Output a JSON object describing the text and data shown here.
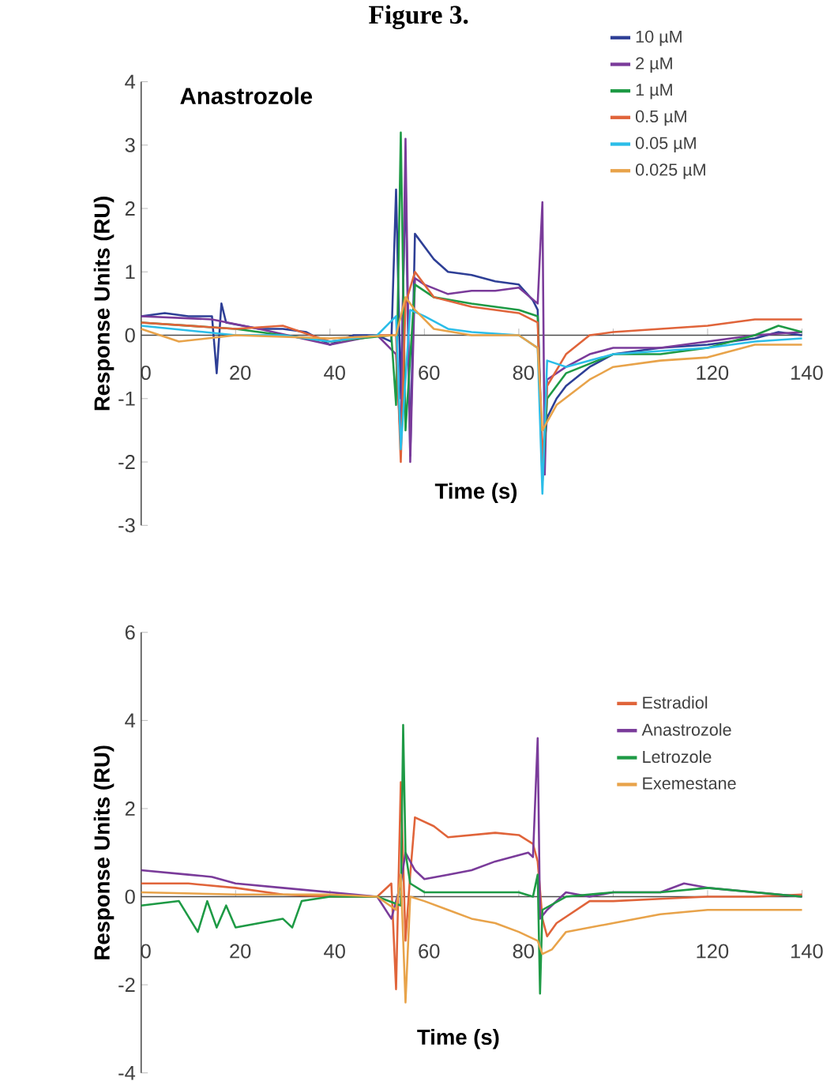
{
  "chart_data": [
    {
      "type": "line",
      "title": "Figure 3.",
      "xlabel": "Time (s)",
      "ylabel": "Response Units (RU)",
      "annotations": [
        "Anastrozole"
      ],
      "xlim": [
        0,
        140
      ],
      "ylim": [
        -3,
        4
      ],
      "xticks": [
        0,
        20,
        40,
        60,
        80,
        {
          "value": 100,
          "label": null
        },
        120,
        140
      ],
      "yticks": [
        -3,
        -2,
        -1,
        0,
        1,
        2,
        3,
        4
      ],
      "legend": "top right",
      "series": [
        {
          "name": "10 µM",
          "color": "#2e3f96",
          "x": [
            0,
            5,
            10,
            15,
            16,
            17,
            18,
            25,
            30,
            35,
            40,
            45,
            50,
            53,
            54,
            55,
            56,
            57,
            58,
            60,
            62,
            65,
            70,
            75,
            80,
            83,
            84,
            85,
            86,
            88,
            90,
            95,
            100,
            110,
            120,
            130,
            135,
            140
          ],
          "values": [
            0.3,
            0.35,
            0.3,
            0.3,
            -0.6,
            0.5,
            0.2,
            0.1,
            0.1,
            0.05,
            -0.15,
            0,
            0,
            -0.1,
            2.3,
            -1.0,
            2.5,
            -1.9,
            1.6,
            1.4,
            1.2,
            1.0,
            0.95,
            0.85,
            0.8,
            0.55,
            0.4,
            -2.0,
            -1.3,
            -1.0,
            -0.8,
            -0.5,
            -0.3,
            -0.2,
            -0.15,
            -0.05,
            0.05,
            0
          ]
        },
        {
          "name": "2 µM",
          "color": "#7a3b9a",
          "x": [
            0,
            15,
            25,
            40,
            50,
            54,
            55,
            56,
            57,
            58,
            60,
            65,
            70,
            75,
            80,
            84,
            85,
            85.5,
            86,
            90,
            95,
            100,
            110,
            120,
            130,
            140
          ],
          "values": [
            0.3,
            0.25,
            0.1,
            -0.15,
            0,
            -0.3,
            -1.7,
            3.1,
            -2.0,
            0.9,
            0.8,
            0.65,
            0.7,
            0.7,
            0.75,
            0.5,
            2.1,
            -2.2,
            -0.7,
            -0.5,
            -0.3,
            -0.2,
            -0.2,
            -0.1,
            0,
            0.05
          ]
        },
        {
          "name": "1 µM",
          "color": "#1e9a45",
          "x": [
            0,
            20,
            40,
            53,
            54,
            55,
            56,
            58,
            62,
            70,
            80,
            84,
            85,
            86,
            90,
            100,
            110,
            120,
            130,
            135,
            140
          ],
          "values": [
            0.2,
            0.1,
            -0.1,
            0,
            -1.1,
            3.2,
            -1.5,
            0.8,
            0.6,
            0.5,
            0.4,
            0.3,
            -2.3,
            -1.0,
            -0.6,
            -0.3,
            -0.3,
            -0.2,
            0,
            0.15,
            0.05
          ]
        },
        {
          "name": "0.5 µM",
          "color": "#e0643a",
          "x": [
            0,
            20,
            30,
            40,
            50,
            54,
            55,
            56,
            58,
            62,
            70,
            80,
            84,
            85,
            86,
            90,
            95,
            100,
            110,
            120,
            130,
            140
          ],
          "values": [
            0.2,
            0.1,
            0.15,
            -0.1,
            0,
            0,
            -2.0,
            0.5,
            1.0,
            0.6,
            0.45,
            0.35,
            0.2,
            -2.0,
            -0.8,
            -0.3,
            0,
            0.05,
            0.1,
            0.15,
            0.25,
            0.25
          ]
        },
        {
          "name": "0.05 µM",
          "color": "#2bbde8",
          "x": [
            0,
            20,
            30,
            40,
            50,
            54,
            55,
            57,
            60,
            65,
            70,
            80,
            84,
            85,
            86,
            90,
            100,
            120,
            130,
            140
          ],
          "values": [
            0.15,
            0,
            0,
            -0.1,
            0,
            0.3,
            -1.8,
            0.4,
            0.3,
            0.1,
            0.05,
            0,
            -0.2,
            -2.5,
            -0.4,
            -0.5,
            -0.3,
            -0.2,
            -0.1,
            -0.05
          ]
        },
        {
          "name": "0.025 µM",
          "color": "#e8a34a",
          "x": [
            0,
            8,
            20,
            40,
            54,
            56,
            58,
            62,
            70,
            80,
            84,
            85,
            88,
            95,
            100,
            110,
            120,
            130,
            140
          ],
          "values": [
            0.1,
            -0.1,
            0,
            -0.05,
            0,
            0.6,
            0.4,
            0.1,
            0,
            0,
            -0.2,
            -1.5,
            -1.1,
            -0.7,
            -0.5,
            -0.4,
            -0.35,
            -0.15,
            -0.15
          ]
        }
      ]
    },
    {
      "type": "line",
      "xlabel": "Time (s)",
      "ylabel": "Response Units (RU)",
      "xlim": [
        0,
        140
      ],
      "ylim": [
        -4,
        6
      ],
      "xticks": [
        0,
        20,
        40,
        60,
        80,
        {
          "value": 100,
          "label": null
        },
        120,
        140
      ],
      "yticks": [
        -4,
        -2,
        0,
        2,
        4,
        6
      ],
      "legend": "top right",
      "series": [
        {
          "name": "Estradiol",
          "color": "#e0643a",
          "x": [
            0,
            10,
            20,
            30,
            40,
            50,
            53,
            54,
            55,
            56,
            57,
            58,
            62,
            65,
            70,
            75,
            80,
            83,
            84,
            85,
            86,
            88,
            95,
            100,
            110,
            120,
            130,
            140
          ],
          "values": [
            0.3,
            0.3,
            0.2,
            0.05,
            0,
            0,
            0.3,
            -2.1,
            2.6,
            -1.0,
            0.5,
            1.8,
            1.6,
            1.35,
            1.4,
            1.45,
            1.4,
            1.2,
            0.8,
            -0.5,
            -0.9,
            -0.6,
            -0.1,
            -0.1,
            -0.05,
            0,
            0,
            0.05
          ]
        },
        {
          "name": "Anastrozole",
          "color": "#7a3b9a",
          "x": [
            0,
            10,
            15,
            20,
            30,
            40,
            50,
            53,
            55,
            56,
            58,
            60,
            65,
            70,
            75,
            82,
            83,
            84,
            84.5,
            86,
            90,
            95,
            100,
            110,
            115,
            120,
            130,
            140
          ],
          "values": [
            0.6,
            0.5,
            0.45,
            0.3,
            0.2,
            0.1,
            0,
            -0.5,
            0.3,
            1.0,
            0.6,
            0.4,
            0.5,
            0.6,
            0.8,
            1.0,
            0.9,
            3.6,
            -0.5,
            -0.3,
            0.1,
            0,
            0.1,
            0.1,
            0.3,
            0.2,
            0.1,
            0
          ]
        },
        {
          "name": "Letrozole",
          "color": "#1e9a45",
          "x": [
            0,
            8,
            12,
            14,
            16,
            18,
            20,
            25,
            30,
            32,
            34,
            40,
            50,
            55,
            55.5,
            56,
            57,
            60,
            70,
            80,
            83,
            84,
            84.5,
            85,
            90,
            100,
            110,
            120,
            130,
            140
          ],
          "values": [
            -0.2,
            -0.1,
            -0.8,
            -0.1,
            -0.7,
            -0.2,
            -0.7,
            -0.6,
            -0.5,
            -0.7,
            -0.1,
            0,
            0,
            -0.2,
            3.9,
            1.0,
            0.3,
            0.1,
            0.1,
            0.1,
            0,
            0.5,
            -2.2,
            -0.3,
            0,
            0.1,
            0.1,
            0.2,
            0.1,
            0
          ]
        },
        {
          "name": "Exemestane",
          "color": "#e8a34a",
          "x": [
            0,
            20,
            40,
            50,
            54,
            55,
            56,
            57,
            60,
            65,
            70,
            75,
            80,
            84,
            85,
            87,
            90,
            100,
            110,
            120,
            130,
            140
          ],
          "values": [
            0.1,
            0.05,
            0.05,
            0,
            -0.3,
            0.5,
            -2.4,
            0,
            -0.1,
            -0.3,
            -0.5,
            -0.6,
            -0.8,
            -1.0,
            -1.3,
            -1.2,
            -0.8,
            -0.6,
            -0.4,
            -0.3,
            -0.3,
            -0.3
          ]
        }
      ]
    }
  ]
}
